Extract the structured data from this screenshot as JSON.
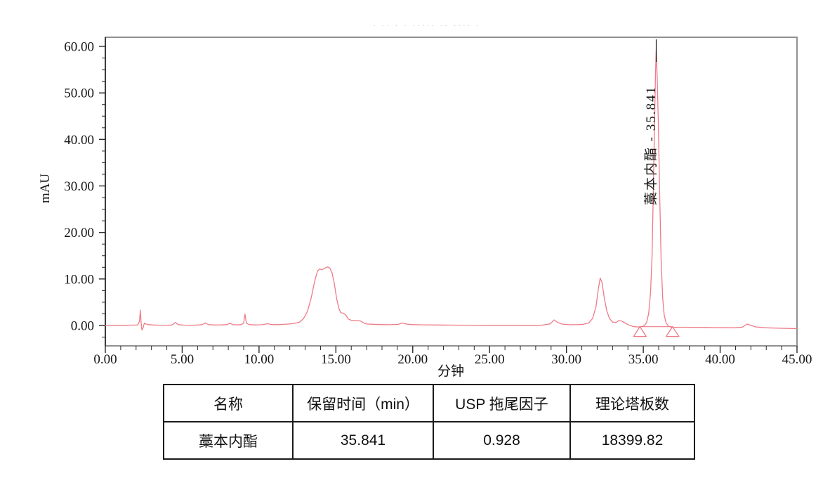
{
  "report": {
    "faint_header_marks": "· ·· ·  · ····· ··    ···· ·"
  },
  "chart_data": {
    "type": "line",
    "title": "",
    "xlabel": "分钟",
    "ylabel": "mAU",
    "xlim": [
      0,
      45
    ],
    "ylim": [
      -4.4,
      62
    ],
    "grid": false,
    "x_major_ticks": [
      0,
      5,
      10,
      15,
      20,
      25,
      30,
      35,
      40,
      45
    ],
    "x_tick_labels": [
      "0.00",
      "5.00",
      "10.00",
      "15.00",
      "20.00",
      "25.00",
      "30.00",
      "35.00",
      "40.00",
      "45.00"
    ],
    "x_minor_step": 1,
    "y_major_ticks": [
      0,
      10,
      20,
      30,
      40,
      50,
      60
    ],
    "y_tick_labels": [
      "0.00",
      "10.00",
      "20.00",
      "30.00",
      "40.00",
      "50.00",
      "60.00"
    ],
    "y_minor_step": 2.5,
    "colors": {
      "trace": "#ee7b86",
      "frame": "#909090",
      "axis": "#2a2a2a",
      "marker": "#1a1a1a"
    },
    "peak": {
      "name": "藁本内酯",
      "retention_min": 35.841,
      "apex_mAU": 59.3,
      "label": "藁本内酯 - 35.841"
    },
    "integration_markers_min": [
      34.78,
      36.9
    ],
    "integration_baseline_mAU": -0.25,
    "series": [
      {
        "name": "detector-signal-mAU",
        "points": [
          [
            0,
            0.05
          ],
          [
            0.6,
            0.05
          ],
          [
            1.2,
            0.05
          ],
          [
            1.8,
            0.07
          ],
          [
            2.1,
            0.1
          ],
          [
            2.22,
            0.9
          ],
          [
            2.28,
            3.3
          ],
          [
            2.33,
            0.5
          ],
          [
            2.38,
            -1.0
          ],
          [
            2.46,
            -0.45
          ],
          [
            2.54,
            0.5
          ],
          [
            2.63,
            0.32
          ],
          [
            2.8,
            0.18
          ],
          [
            3.1,
            0.1
          ],
          [
            3.6,
            0.06
          ],
          [
            4.1,
            0.06
          ],
          [
            4.35,
            0.12
          ],
          [
            4.55,
            0.65
          ],
          [
            4.75,
            0.18
          ],
          [
            5.1,
            0.08
          ],
          [
            5.6,
            0.06
          ],
          [
            6.05,
            0.1
          ],
          [
            6.3,
            0.18
          ],
          [
            6.5,
            0.55
          ],
          [
            6.72,
            0.18
          ],
          [
            7.1,
            0.1
          ],
          [
            7.55,
            0.12
          ],
          [
            7.9,
            0.18
          ],
          [
            8.1,
            0.45
          ],
          [
            8.32,
            0.16
          ],
          [
            8.6,
            0.12
          ],
          [
            8.85,
            0.2
          ],
          [
            9.0,
            0.5
          ],
          [
            9.08,
            2.45
          ],
          [
            9.18,
            0.5
          ],
          [
            9.35,
            0.2
          ],
          [
            9.7,
            0.12
          ],
          [
            10.2,
            0.15
          ],
          [
            10.55,
            0.38
          ],
          [
            10.85,
            0.18
          ],
          [
            11.3,
            0.18
          ],
          [
            11.8,
            0.28
          ],
          [
            12.2,
            0.4
          ],
          [
            12.6,
            0.65
          ],
          [
            12.9,
            1.5
          ],
          [
            13.15,
            3.0
          ],
          [
            13.4,
            6.0
          ],
          [
            13.62,
            9.5
          ],
          [
            13.8,
            11.7
          ],
          [
            13.95,
            12.15
          ],
          [
            14.1,
            12.0
          ],
          [
            14.25,
            12.25
          ],
          [
            14.45,
            12.6
          ],
          [
            14.6,
            12.35
          ],
          [
            14.75,
            11.3
          ],
          [
            14.9,
            9.0
          ],
          [
            15.05,
            5.8
          ],
          [
            15.2,
            3.6
          ],
          [
            15.32,
            2.75
          ],
          [
            15.5,
            2.6
          ],
          [
            15.65,
            2.25
          ],
          [
            15.8,
            1.4
          ],
          [
            16.0,
            1.12
          ],
          [
            16.3,
            1.05
          ],
          [
            16.6,
            0.98
          ],
          [
            16.78,
            0.6
          ],
          [
            17.0,
            0.32
          ],
          [
            17.4,
            0.25
          ],
          [
            17.9,
            0.2
          ],
          [
            18.5,
            0.16
          ],
          [
            19.05,
            0.22
          ],
          [
            19.3,
            0.55
          ],
          [
            19.55,
            0.32
          ],
          [
            19.9,
            0.2
          ],
          [
            20.6,
            0.14
          ],
          [
            21.6,
            0.1
          ],
          [
            22.6,
            0.08
          ],
          [
            23.6,
            0.06
          ],
          [
            24.6,
            0.05
          ],
          [
            25.6,
            0.05
          ],
          [
            26.6,
            0.04
          ],
          [
            27.6,
            0.03
          ],
          [
            28.4,
            0.06
          ],
          [
            28.95,
            0.35
          ],
          [
            29.2,
            1.2
          ],
          [
            29.45,
            0.62
          ],
          [
            29.75,
            0.28
          ],
          [
            30.2,
            0.16
          ],
          [
            30.7,
            0.16
          ],
          [
            31.1,
            0.25
          ],
          [
            31.45,
            0.55
          ],
          [
            31.7,
            1.5
          ],
          [
            31.92,
            4.0
          ],
          [
            32.08,
            8.0
          ],
          [
            32.2,
            10.2
          ],
          [
            32.32,
            9.2
          ],
          [
            32.46,
            6.0
          ],
          [
            32.62,
            3.2
          ],
          [
            32.8,
            1.5
          ],
          [
            33.0,
            0.72
          ],
          [
            33.2,
            0.6
          ],
          [
            33.42,
            1.05
          ],
          [
            33.62,
            0.92
          ],
          [
            33.85,
            0.45
          ],
          [
            34.1,
            0.05
          ],
          [
            34.4,
            -0.25
          ],
          [
            34.7,
            -0.32
          ],
          [
            34.95,
            -0.2
          ],
          [
            35.1,
            0.05
          ],
          [
            35.22,
            0.7
          ],
          [
            35.35,
            2.6
          ],
          [
            35.47,
            7.0
          ],
          [
            35.57,
            15.0
          ],
          [
            35.65,
            28.0
          ],
          [
            35.73,
            43.0
          ],
          [
            35.79,
            53.5
          ],
          [
            35.841,
            59.3
          ],
          [
            35.9,
            54.0
          ],
          [
            35.98,
            43.0
          ],
          [
            36.07,
            28.0
          ],
          [
            36.16,
            14.0
          ],
          [
            36.26,
            6.0
          ],
          [
            36.36,
            2.2
          ],
          [
            36.48,
            0.6
          ],
          [
            36.62,
            -0.1
          ],
          [
            36.8,
            -0.35
          ],
          [
            37.05,
            -0.4
          ],
          [
            37.5,
            -0.38
          ],
          [
            38.2,
            -0.4
          ],
          [
            39.0,
            -0.42
          ],
          [
            40.0,
            -0.48
          ],
          [
            41.0,
            -0.5
          ],
          [
            41.45,
            -0.35
          ],
          [
            41.75,
            0.3
          ],
          [
            42.0,
            0.05
          ],
          [
            42.3,
            -0.3
          ],
          [
            43.0,
            -0.5
          ],
          [
            44.0,
            -0.6
          ],
          [
            45.0,
            -0.68
          ]
        ]
      }
    ]
  },
  "table": {
    "headers": [
      "名称",
      "保留时间（min）",
      "USP 拖尾因子",
      "理论塔板数"
    ],
    "rows": [
      [
        "藁本内酯",
        "35.841",
        "0.928",
        "18399.82"
      ]
    ]
  }
}
